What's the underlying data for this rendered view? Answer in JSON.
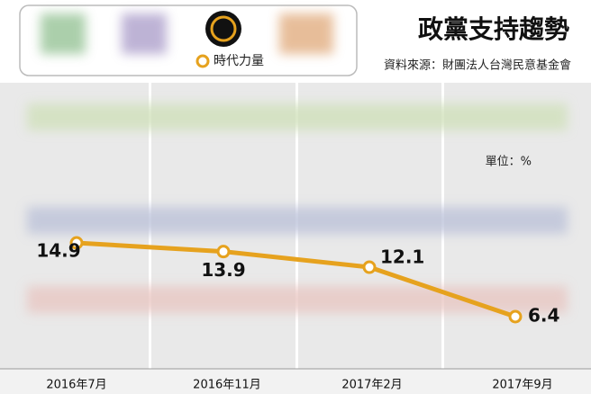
{
  "chart_data": {
    "type": "line",
    "title": "政黨支持趨勢",
    "source": "資料來源：財團法人台灣民意基金會",
    "unit": "單位：%",
    "categories": [
      "2016年7月",
      "2016年11月",
      "2017年2月",
      "2017年9月"
    ],
    "series": [
      {
        "name": "時代力量",
        "color": "#e6a21e",
        "values": [
          14.9,
          13.9,
          12.1,
          6.4
        ]
      }
    ]
  }
}
